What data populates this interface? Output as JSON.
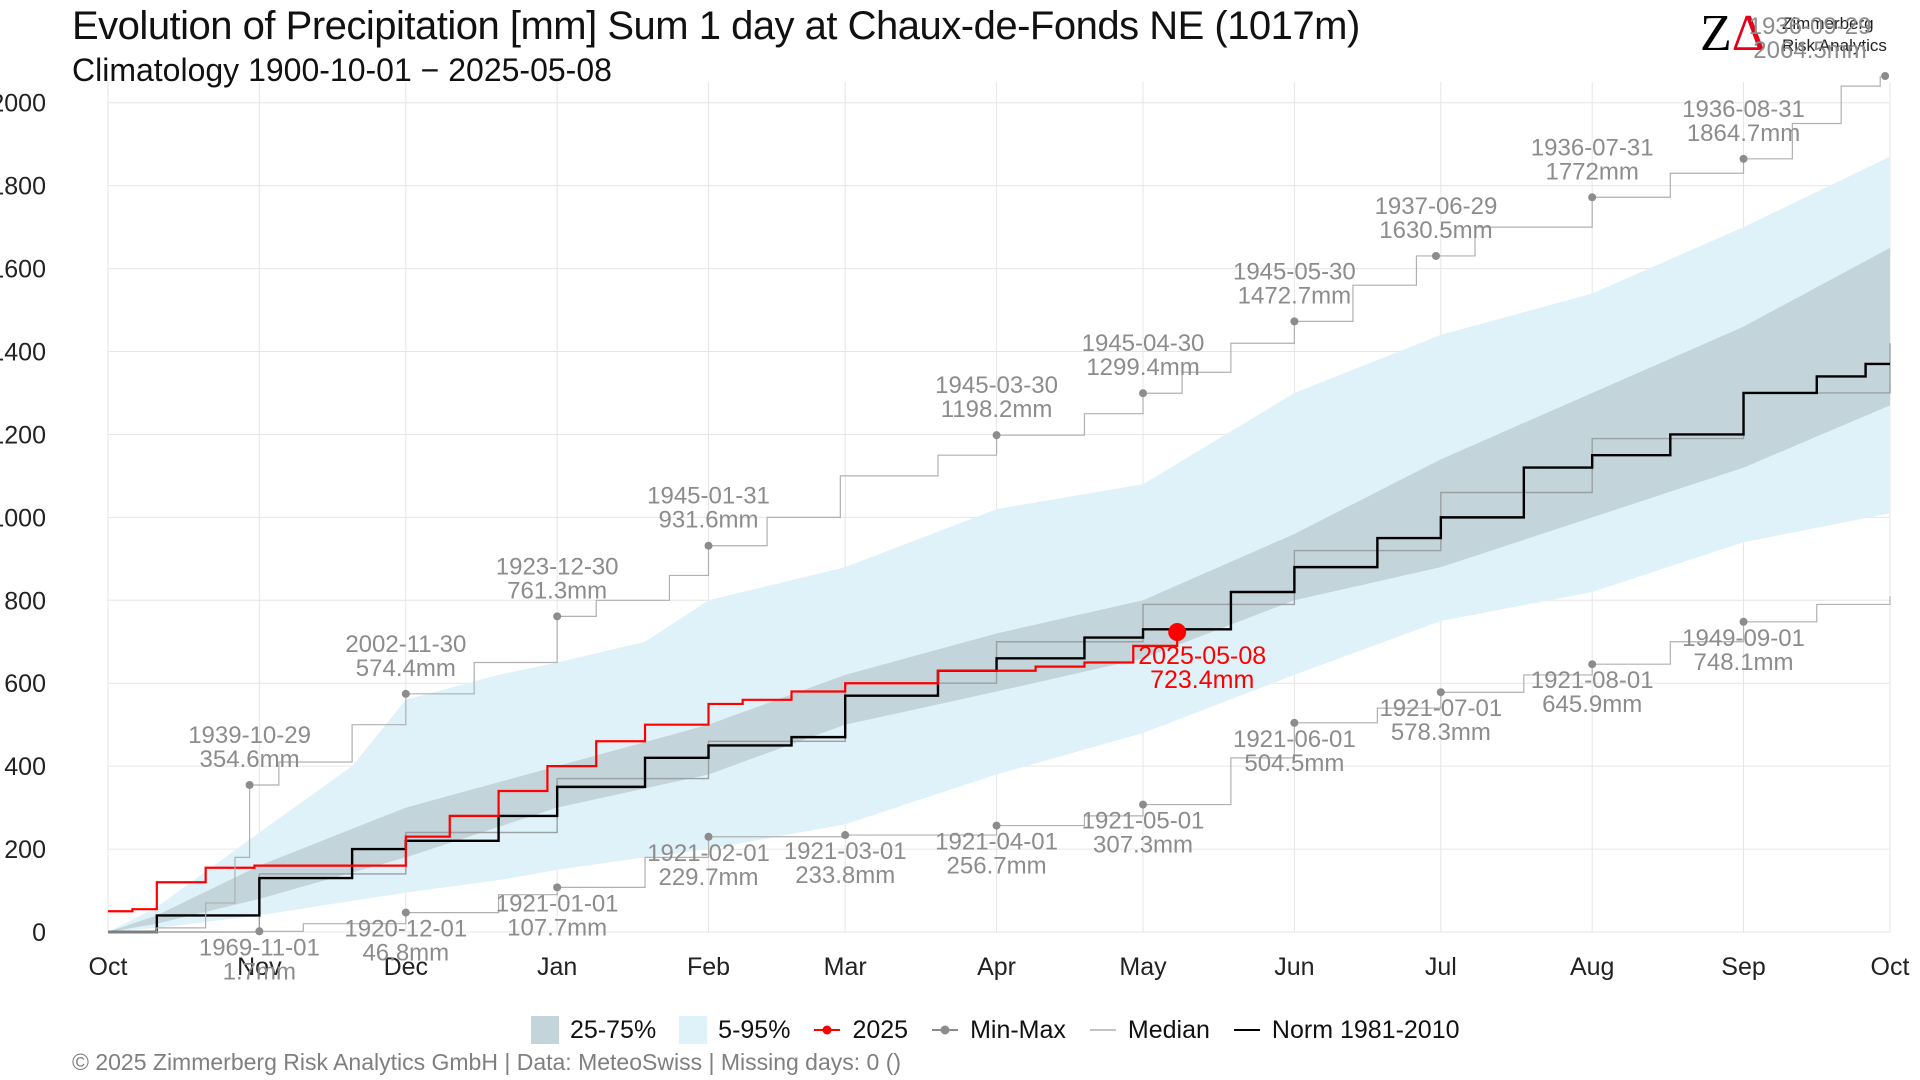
{
  "header": {
    "title": "Evolution of Precipitation [mm] Sum 1 day at Chaux-de-Fonds  NE (1017m)",
    "subtitle": "Climatology 1900-10-01 − 2025-05-08"
  },
  "logo": {
    "mark_left": "Z",
    "mark_right": "Δ",
    "name": "Zimmerberg",
    "tagline": "Risk Analytics"
  },
  "footer": {
    "text": "©  2025 Zimmerberg Risk Analytics GmbH | Data: MeteoSwiss | Missing days: 0 ()"
  },
  "legend": [
    {
      "label": "25-75%",
      "kind": "box",
      "color": "#c3d4da"
    },
    {
      "label": "5-95%",
      "kind": "box",
      "color": "#dff2fa"
    },
    {
      "label": "2025",
      "kind": "line-point",
      "color": "#ff0000"
    },
    {
      "label": "Min-Max",
      "kind": "line-point",
      "color": "#8c8c8c"
    },
    {
      "label": "Median",
      "kind": "line",
      "color": "#9aa0a3"
    },
    {
      "label": "Norm 1981-2010",
      "kind": "line",
      "color": "#000000"
    }
  ],
  "colors": {
    "band_25_75": "#c3d4da",
    "band_5_95": "#dff2fa",
    "current": "#ff0000",
    "minmax": "#b0b0b0",
    "minmax_label": "#8c8c8c",
    "median": "#9aa0a3",
    "norm": "#000000",
    "grid": "#e6e6e6"
  },
  "chart_data": {
    "type": "line",
    "x_axis": {
      "unit": "day of hydrological year (0 = Oct 1)",
      "range": [
        0,
        365
      ],
      "ticks": [
        {
          "day": 0,
          "label": "Oct"
        },
        {
          "day": 31,
          "label": "Nov"
        },
        {
          "day": 61,
          "label": "Dec"
        },
        {
          "day": 92,
          "label": "Jan"
        },
        {
          "day": 123,
          "label": "Feb"
        },
        {
          "day": 151,
          "label": "Mar"
        },
        {
          "day": 182,
          "label": "Apr"
        },
        {
          "day": 212,
          "label": "May"
        },
        {
          "day": 243,
          "label": "Jun"
        },
        {
          "day": 273,
          "label": "Jul"
        },
        {
          "day": 304,
          "label": "Aug"
        },
        {
          "day": 335,
          "label": "Sep"
        },
        {
          "day": 365,
          "label": "Oct"
        }
      ]
    },
    "y_axis": {
      "range": [
        0,
        2050
      ],
      "ticks": [
        0,
        200,
        400,
        600,
        800,
        1000,
        1200,
        1400,
        1600,
        1800,
        2000
      ]
    },
    "grid": true,
    "legend_position": "bottom",
    "band_5_95": [
      {
        "x": 0,
        "lo": 0,
        "hi": 0
      },
      {
        "x": 10,
        "lo": 10,
        "hi": 60
      },
      {
        "x": 31,
        "lo": 40,
        "hi": 240
      },
      {
        "x": 50,
        "lo": 75,
        "hi": 400
      },
      {
        "x": 61,
        "lo": 95,
        "hi": 560
      },
      {
        "x": 80,
        "lo": 125,
        "hi": 620
      },
      {
        "x": 92,
        "lo": 150,
        "hi": 650
      },
      {
        "x": 110,
        "lo": 180,
        "hi": 700
      },
      {
        "x": 123,
        "lo": 200,
        "hi": 800
      },
      {
        "x": 151,
        "lo": 260,
        "hi": 880
      },
      {
        "x": 182,
        "lo": 380,
        "hi": 1020
      },
      {
        "x": 212,
        "lo": 480,
        "hi": 1080
      },
      {
        "x": 243,
        "lo": 620,
        "hi": 1300
      },
      {
        "x": 273,
        "lo": 750,
        "hi": 1440
      },
      {
        "x": 304,
        "lo": 820,
        "hi": 1540
      },
      {
        "x": 335,
        "lo": 940,
        "hi": 1700
      },
      {
        "x": 365,
        "lo": 1010,
        "hi": 1870
      }
    ],
    "band_25_75": [
      {
        "x": 0,
        "lo": 0,
        "hi": 0
      },
      {
        "x": 10,
        "lo": 20,
        "hi": 40
      },
      {
        "x": 31,
        "lo": 80,
        "hi": 160
      },
      {
        "x": 61,
        "lo": 180,
        "hi": 300
      },
      {
        "x": 92,
        "lo": 300,
        "hi": 400
      },
      {
        "x": 123,
        "lo": 380,
        "hi": 500
      },
      {
        "x": 151,
        "lo": 500,
        "hi": 620
      },
      {
        "x": 182,
        "lo": 580,
        "hi": 720
      },
      {
        "x": 212,
        "lo": 660,
        "hi": 800
      },
      {
        "x": 243,
        "lo": 800,
        "hi": 960
      },
      {
        "x": 273,
        "lo": 880,
        "hi": 1140
      },
      {
        "x": 304,
        "lo": 1000,
        "hi": 1300
      },
      {
        "x": 335,
        "lo": 1120,
        "hi": 1460
      },
      {
        "x": 365,
        "lo": 1270,
        "hi": 1650
      }
    ],
    "series": [
      {
        "name": "Median",
        "style": "step",
        "points": [
          [
            0,
            0
          ],
          [
            31,
            140
          ],
          [
            61,
            240
          ],
          [
            92,
            370
          ],
          [
            123,
            460
          ],
          [
            151,
            600
          ],
          [
            182,
            700
          ],
          [
            212,
            790
          ],
          [
            243,
            920
          ],
          [
            273,
            1060
          ],
          [
            304,
            1190
          ],
          [
            335,
            1300
          ],
          [
            365,
            1420
          ]
        ]
      },
      {
        "name": "Norm 1981-2010",
        "style": "step",
        "points": [
          [
            0,
            0
          ],
          [
            10,
            40
          ],
          [
            31,
            130
          ],
          [
            50,
            200
          ],
          [
            61,
            220
          ],
          [
            80,
            280
          ],
          [
            92,
            350
          ],
          [
            110,
            420
          ],
          [
            123,
            450
          ],
          [
            140,
            470
          ],
          [
            151,
            570
          ],
          [
            170,
            630
          ],
          [
            182,
            660
          ],
          [
            200,
            710
          ],
          [
            212,
            730
          ],
          [
            230,
            820
          ],
          [
            243,
            880
          ],
          [
            260,
            950
          ],
          [
            273,
            1000
          ],
          [
            290,
            1120
          ],
          [
            304,
            1150
          ],
          [
            320,
            1200
          ],
          [
            335,
            1300
          ],
          [
            350,
            1340
          ],
          [
            360,
            1370
          ],
          [
            365,
            1370
          ]
        ]
      },
      {
        "name": "2025",
        "style": "step",
        "points": [
          [
            0,
            50
          ],
          [
            5,
            55
          ],
          [
            10,
            120
          ],
          [
            20,
            155
          ],
          [
            30,
            160
          ],
          [
            50,
            160
          ],
          [
            61,
            230
          ],
          [
            70,
            280
          ],
          [
            80,
            340
          ],
          [
            90,
            400
          ],
          [
            100,
            460
          ],
          [
            110,
            500
          ],
          [
            123,
            550
          ],
          [
            130,
            560
          ],
          [
            140,
            580
          ],
          [
            151,
            600
          ],
          [
            170,
            630
          ],
          [
            182,
            630
          ],
          [
            190,
            640
          ],
          [
            200,
            650
          ],
          [
            210,
            690
          ],
          [
            219,
            723.4
          ]
        ]
      },
      {
        "name": "Min-Max",
        "style": "step",
        "points": [
          [
            0,
            0
          ],
          [
            10,
            10
          ],
          [
            20,
            70
          ],
          [
            26,
            180
          ],
          [
            29,
            354.6
          ],
          [
            35,
            410
          ],
          [
            50,
            500
          ],
          [
            61,
            574.4
          ],
          [
            75,
            650
          ],
          [
            92,
            761.3
          ],
          [
            100,
            800
          ],
          [
            115,
            860
          ],
          [
            123,
            931.6
          ],
          [
            135,
            1000
          ],
          [
            150,
            1100
          ],
          [
            170,
            1150
          ],
          [
            182,
            1198.2
          ],
          [
            200,
            1250
          ],
          [
            212,
            1299.4
          ],
          [
            220,
            1350
          ],
          [
            230,
            1420
          ],
          [
            243,
            1472.7
          ],
          [
            255,
            1560
          ],
          [
            268,
            1630.5
          ],
          [
            280,
            1700
          ],
          [
            304,
            1772
          ],
          [
            320,
            1830
          ],
          [
            335,
            1864.7
          ],
          [
            345,
            1950
          ],
          [
            355,
            2040
          ],
          [
            363,
            2064.5
          ]
        ]
      },
      {
        "name": "Min-Max",
        "style": "step",
        "points": [
          [
            0,
            0
          ],
          [
            31,
            1.7
          ],
          [
            40,
            20
          ],
          [
            61,
            46.8
          ],
          [
            80,
            90
          ],
          [
            92,
            107.7
          ],
          [
            110,
            180
          ],
          [
            123,
            229.7
          ],
          [
            151,
            233.8
          ],
          [
            182,
            256.7
          ],
          [
            200,
            280
          ],
          [
            212,
            307.3
          ],
          [
            230,
            420
          ],
          [
            243,
            504.5
          ],
          [
            260,
            540
          ],
          [
            273,
            578.3
          ],
          [
            290,
            620
          ],
          [
            304,
            645.9
          ],
          [
            320,
            700
          ],
          [
            335,
            748.1
          ],
          [
            350,
            790
          ],
          [
            365,
            810
          ]
        ]
      }
    ],
    "current": {
      "date": "2025-05-08",
      "value_label": "723.4mm",
      "x": 219,
      "y": 723.4
    },
    "annotations_max": [
      {
        "date": "1939-10-29",
        "value": "354.6mm",
        "x": 29,
        "y": 354.6
      },
      {
        "date": "2002-11-30",
        "value": "574.4mm",
        "x": 61,
        "y": 574.4
      },
      {
        "date": "1923-12-30",
        "value": "761.3mm",
        "x": 92,
        "y": 761.3
      },
      {
        "date": "1945-01-31",
        "value": "931.6mm",
        "x": 123,
        "y": 931.6
      },
      {
        "date": "1945-03-30",
        "value": "1198.2mm",
        "x": 182,
        "y": 1198.2
      },
      {
        "date": "1945-04-30",
        "value": "1299.4mm",
        "x": 212,
        "y": 1299.4
      },
      {
        "date": "1945-05-30",
        "value": "1472.7mm",
        "x": 243,
        "y": 1472.7
      },
      {
        "date": "1937-06-29",
        "value": "1630.5mm",
        "x": 272,
        "y": 1630.5
      },
      {
        "date": "1936-07-31",
        "value": "1772mm",
        "x": 304,
        "y": 1772
      },
      {
        "date": "1936-08-31",
        "value": "1864.7mm",
        "x": 335,
        "y": 1864.7
      },
      {
        "date": "1936-09-29",
        "value": "2064.5mm",
        "x": 364,
        "y": 2064.5
      }
    ],
    "annotations_min": [
      {
        "date": "1969-11-01",
        "value": "1.7mm",
        "x": 31,
        "y": 1.7
      },
      {
        "date": "1920-12-01",
        "value": "46.8mm",
        "x": 61,
        "y": 46.8
      },
      {
        "date": "1921-01-01",
        "value": "107.7mm",
        "x": 92,
        "y": 107.7
      },
      {
        "date": "1921-02-01",
        "value": "229.7mm",
        "x": 123,
        "y": 229.7
      },
      {
        "date": "1921-03-01",
        "value": "233.8mm",
        "x": 151,
        "y": 233.8
      },
      {
        "date": "1921-04-01",
        "value": "256.7mm",
        "x": 182,
        "y": 256.7
      },
      {
        "date": "1921-05-01",
        "value": "307.3mm",
        "x": 212,
        "y": 307.3
      },
      {
        "date": "1921-06-01",
        "value": "504.5mm",
        "x": 243,
        "y": 504.5
      },
      {
        "date": "1921-07-01",
        "value": "578.3mm",
        "x": 273,
        "y": 578.3
      },
      {
        "date": "1921-08-01",
        "value": "645.9mm",
        "x": 304,
        "y": 645.9
      },
      {
        "date": "1949-09-01",
        "value": "748.1mm",
        "x": 335,
        "y": 748.1
      }
    ]
  }
}
